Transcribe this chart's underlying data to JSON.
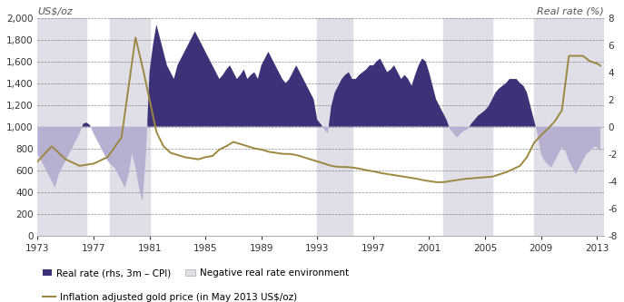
{
  "title_left": "US$/oz",
  "title_right": "Real rate (%)",
  "legend": {
    "real_rate_label": "Real rate (rhs, 3m – CPI)",
    "negative_label": "Negative real rate environment",
    "gold_label": "Inflation adjusted gold price (in May 2013 US$/oz)"
  },
  "colors": {
    "real_rate_positive": "#3d3277",
    "real_rate_negative": "#b8b0d0",
    "gold_line": "#9c8840",
    "background": "#ffffff",
    "shading_bg": "#e0dfe8",
    "grid_color": "#444444"
  },
  "ylim_left": [
    0,
    2000
  ],
  "ylim_right": [
    -8,
    8
  ],
  "xlim": [
    1973,
    2013.5
  ],
  "yticks_left": [
    0,
    200,
    400,
    600,
    800,
    1000,
    1200,
    1400,
    1600,
    1800,
    2000
  ],
  "yticks_right": [
    -8,
    -6,
    -4,
    -2,
    0,
    2,
    4,
    6,
    8
  ],
  "xticks": [
    1973,
    1977,
    1981,
    1985,
    1989,
    1993,
    1997,
    2001,
    2005,
    2009,
    2013
  ],
  "gray_shading_periods": [
    [
      1973.0,
      1976.5
    ],
    [
      1978.2,
      1981.0
    ],
    [
      1993.0,
      1995.5
    ],
    [
      2002.0,
      2005.5
    ],
    [
      2008.5,
      2013.5
    ]
  ],
  "rate_years": [
    1973.0,
    1973.25,
    1973.5,
    1973.75,
    1974.0,
    1974.25,
    1974.5,
    1974.75,
    1975.0,
    1975.25,
    1975.5,
    1975.75,
    1976.0,
    1976.25,
    1976.5,
    1976.75,
    1977.0,
    1977.25,
    1977.5,
    1977.75,
    1978.0,
    1978.25,
    1978.5,
    1978.75,
    1979.0,
    1979.25,
    1979.5,
    1979.75,
    1980.0,
    1980.25,
    1980.5,
    1980.75,
    1981.0,
    1981.25,
    1981.5,
    1981.75,
    1982.0,
    1982.25,
    1982.5,
    1982.75,
    1983.0,
    1983.25,
    1983.5,
    1983.75,
    1984.0,
    1984.25,
    1984.5,
    1984.75,
    1985.0,
    1985.25,
    1985.5,
    1985.75,
    1986.0,
    1986.25,
    1986.5,
    1986.75,
    1987.0,
    1987.25,
    1987.5,
    1987.75,
    1988.0,
    1988.25,
    1988.5,
    1988.75,
    1989.0,
    1989.25,
    1989.5,
    1989.75,
    1990.0,
    1990.25,
    1990.5,
    1990.75,
    1991.0,
    1991.25,
    1991.5,
    1991.75,
    1992.0,
    1992.25,
    1992.5,
    1992.75,
    1993.0,
    1993.25,
    1993.5,
    1993.75,
    1994.0,
    1994.25,
    1994.5,
    1994.75,
    1995.0,
    1995.25,
    1995.5,
    1995.75,
    1996.0,
    1996.25,
    1996.5,
    1996.75,
    1997.0,
    1997.25,
    1997.5,
    1997.75,
    1998.0,
    1998.25,
    1998.5,
    1998.75,
    1999.0,
    1999.25,
    1999.5,
    1999.75,
    2000.0,
    2000.25,
    2000.5,
    2000.75,
    2001.0,
    2001.25,
    2001.5,
    2001.75,
    2002.0,
    2002.25,
    2002.5,
    2002.75,
    2003.0,
    2003.25,
    2003.5,
    2003.75,
    2004.0,
    2004.25,
    2004.5,
    2004.75,
    2005.0,
    2005.25,
    2005.5,
    2005.75,
    2006.0,
    2006.25,
    2006.5,
    2006.75,
    2007.0,
    2007.25,
    2007.5,
    2007.75,
    2008.0,
    2008.25,
    2008.5,
    2008.75,
    2009.0,
    2009.25,
    2009.5,
    2009.75,
    2010.0,
    2010.25,
    2010.5,
    2010.75,
    2011.0,
    2011.25,
    2011.5,
    2011.75,
    2012.0,
    2012.25,
    2012.5,
    2012.75,
    2013.0,
    2013.25
  ],
  "real_rate_vals": [
    -2.0,
    -2.5,
    -3.0,
    -3.5,
    -4.0,
    -4.5,
    -3.5,
    -3.0,
    -2.5,
    -2.0,
    -1.5,
    -1.0,
    -0.5,
    0.2,
    0.3,
    0.1,
    -0.5,
    -1.0,
    -1.5,
    -2.0,
    -2.5,
    -2.8,
    -3.0,
    -3.5,
    -4.0,
    -4.5,
    -3.5,
    -2.0,
    -3.0,
    -4.5,
    -5.5,
    -2.0,
    4.0,
    6.0,
    7.5,
    6.5,
    5.5,
    4.5,
    4.0,
    3.5,
    4.5,
    5.0,
    5.5,
    6.0,
    6.5,
    7.0,
    6.5,
    6.0,
    5.5,
    5.0,
    4.5,
    4.0,
    3.5,
    3.8,
    4.2,
    4.5,
    4.0,
    3.5,
    3.8,
    4.2,
    3.5,
    3.8,
    4.0,
    3.5,
    4.5,
    5.0,
    5.5,
    5.0,
    4.5,
    4.0,
    3.5,
    3.2,
    3.5,
    4.0,
    4.5,
    4.0,
    3.5,
    3.0,
    2.5,
    2.0,
    0.5,
    0.2,
    -0.2,
    -0.5,
    1.5,
    2.5,
    3.0,
    3.5,
    3.8,
    4.0,
    3.5,
    3.5,
    3.8,
    4.0,
    4.2,
    4.5,
    4.5,
    4.8,
    5.0,
    4.5,
    4.0,
    4.2,
    4.5,
    4.0,
    3.5,
    3.8,
    3.5,
    3.0,
    3.8,
    4.5,
    5.0,
    4.8,
    4.0,
    3.0,
    2.0,
    1.5,
    1.0,
    0.5,
    -0.2,
    -0.5,
    -0.8,
    -0.5,
    -0.3,
    -0.2,
    0.2,
    0.5,
    0.8,
    1.0,
    1.2,
    1.5,
    2.0,
    2.5,
    2.8,
    3.0,
    3.2,
    3.5,
    3.5,
    3.5,
    3.2,
    3.0,
    2.5,
    1.5,
    0.5,
    -0.5,
    -2.0,
    -2.5,
    -2.8,
    -3.0,
    -2.5,
    -2.0,
    -1.5,
    -1.8,
    -2.5,
    -3.0,
    -3.5,
    -3.0,
    -2.5,
    -2.0,
    -1.8,
    -1.5,
    -1.5,
    -1.8
  ],
  "gold_years": [
    1973,
    1974,
    1975,
    1976,
    1977,
    1978,
    1979,
    1980,
    1980.5,
    1981,
    1981.5,
    1982,
    1982.5,
    1983,
    1983.5,
    1984,
    1984.5,
    1985,
    1985.5,
    1986,
    1986.5,
    1987,
    1987.5,
    1988,
    1988.5,
    1989,
    1989.5,
    1990,
    1990.5,
    1991,
    1991.5,
    1992,
    1992.5,
    1993,
    1993.5,
    1994,
    1994.5,
    1995,
    1995.5,
    1996,
    1996.5,
    1997,
    1997.5,
    1998,
    1998.5,
    1999,
    1999.5,
    2000,
    2000.5,
    2001,
    2001.5,
    2002,
    2002.5,
    2003,
    2003.5,
    2004,
    2004.5,
    2005,
    2005.5,
    2006,
    2006.5,
    2007,
    2007.5,
    2008,
    2008.5,
    2009,
    2009.5,
    2010,
    2010.5,
    2011,
    2011.5,
    2012,
    2012.5,
    2013,
    2013.25
  ],
  "gold_vals": [
    680,
    820,
    700,
    640,
    660,
    720,
    900,
    1820,
    1550,
    1250,
    950,
    820,
    760,
    740,
    720,
    710,
    700,
    720,
    730,
    790,
    820,
    860,
    840,
    820,
    800,
    790,
    770,
    760,
    750,
    750,
    740,
    720,
    700,
    680,
    660,
    640,
    630,
    630,
    625,
    615,
    600,
    590,
    575,
    565,
    555,
    545,
    535,
    525,
    510,
    500,
    490,
    490,
    500,
    510,
    520,
    525,
    530,
    535,
    540,
    560,
    580,
    610,
    640,
    720,
    850,
    920,
    980,
    1050,
    1150,
    1650,
    1650,
    1650,
    1600,
    1580,
    1560
  ]
}
